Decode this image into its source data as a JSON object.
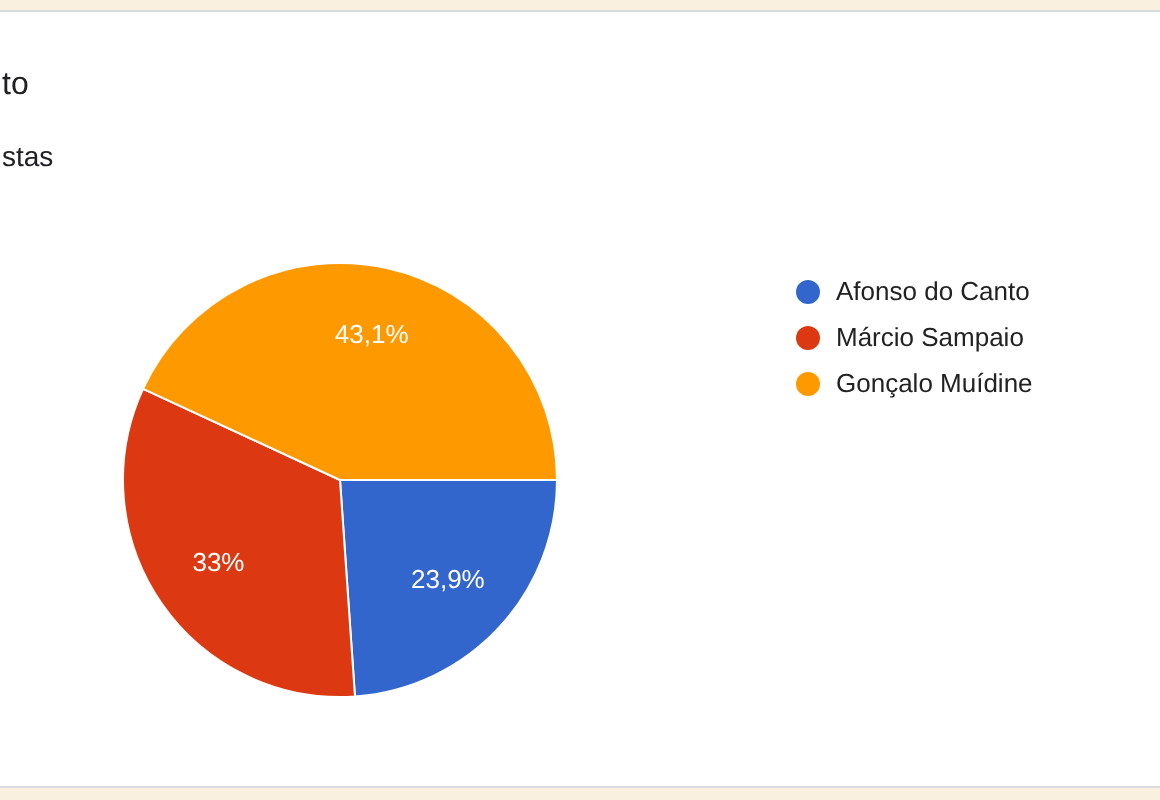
{
  "chart_data": {
    "type": "pie",
    "title": "to",
    "subtitle": "stas",
    "categories": [
      "Afonso do Canto",
      "Márcio Sampaio",
      "Gonçalo Muídine"
    ],
    "values": [
      23.9,
      33,
      43.1
    ],
    "colors": [
      "#3366cc",
      "#dc3912",
      "#ff9900"
    ],
    "value_labels": [
      "23,9%",
      "33%",
      "43,1%"
    ],
    "legend": "right"
  }
}
